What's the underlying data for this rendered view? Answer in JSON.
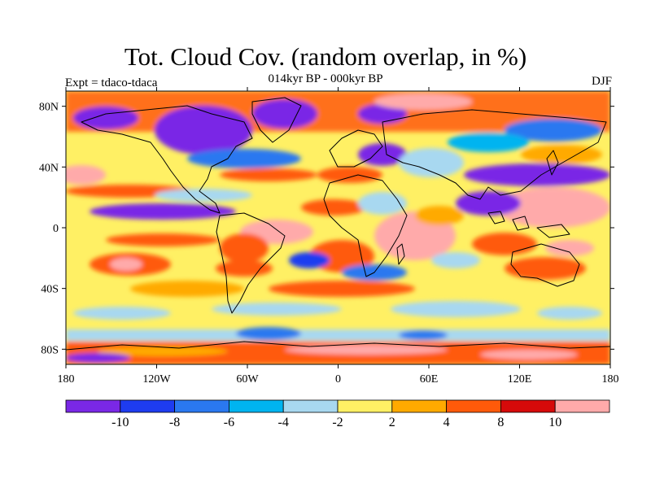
{
  "header": {
    "title": "Tot. Cloud Cov. (random overlap, in %)",
    "subtitle": "014kyr BP - 000kyr BP",
    "left_label": "Expt = tdaco-tdaca",
    "right_label": "DJF"
  },
  "map": {
    "projection": "cylindrical equidistant",
    "lon_range": [
      -180,
      180
    ],
    "lat_range": [
      -90,
      90
    ],
    "lat_ticks": [
      {
        "value": 80,
        "label": "80N"
      },
      {
        "value": 40,
        "label": "40N"
      },
      {
        "value": 0,
        "label": "0"
      },
      {
        "value": -40,
        "label": "40S"
      },
      {
        "value": -80,
        "label": "80S"
      }
    ],
    "lon_ticks": [
      {
        "value": -180,
        "label": "180"
      },
      {
        "value": -120,
        "label": "120W"
      },
      {
        "value": -60,
        "label": "60W"
      },
      {
        "value": 0,
        "label": "0"
      },
      {
        "value": 60,
        "label": "60E"
      },
      {
        "value": 120,
        "label": "120E"
      },
      {
        "value": 180,
        "label": "180"
      }
    ]
  },
  "colorbar": {
    "colors": [
      "#7a28e6",
      "#1e3cf0",
      "#2a78f0",
      "#00b4f0",
      "#a8d8f0",
      "#fff064",
      "#ffaa00",
      "#ff5a0a",
      "#d60a0a",
      "#ffaaaa"
    ],
    "labels": [
      "-10",
      "-8",
      "-6",
      "-4",
      "-2",
      "2",
      "4",
      "8",
      "10"
    ]
  }
}
